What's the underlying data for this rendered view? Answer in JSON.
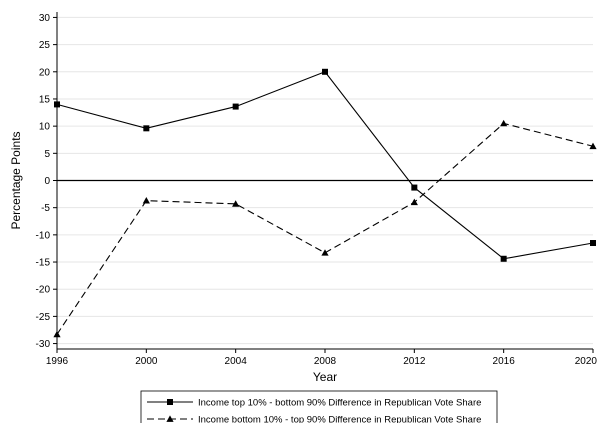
{
  "chart_data": {
    "type": "line",
    "title": "",
    "xlabel": "Year",
    "ylabel": "Percentage Points",
    "x": [
      1996,
      2000,
      2004,
      2008,
      2012,
      2016,
      2020
    ],
    "xticks": [
      "1996",
      "2000",
      "2004",
      "2008",
      "2012",
      "2016",
      "2020"
    ],
    "yticks": [
      "30",
      "25",
      "20",
      "15",
      "10",
      "5",
      "0",
      "-5",
      "-10",
      "-15",
      "-20",
      "-25",
      "-30"
    ],
    "xlim": [
      1996,
      2020
    ],
    "ylim": [
      -31,
      31
    ],
    "grid": true,
    "legend_position": "bottom",
    "series": [
      {
        "name": "Income top 10% - bottom 90% Difference in Republican Vote Share",
        "marker": "square",
        "line_style": "solid",
        "color": "#000000",
        "values": [
          14.0,
          9.6,
          13.6,
          20.0,
          -1.3,
          -14.4,
          -11.5
        ]
      },
      {
        "name": "Income bottom 10% - top 90% Difference in Republican Vote Share",
        "marker": "triangle",
        "line_style": "dashed",
        "color": "#000000",
        "values": [
          -28.3,
          -3.7,
          -4.3,
          -13.3,
          -4.0,
          10.5,
          6.3
        ]
      }
    ]
  }
}
